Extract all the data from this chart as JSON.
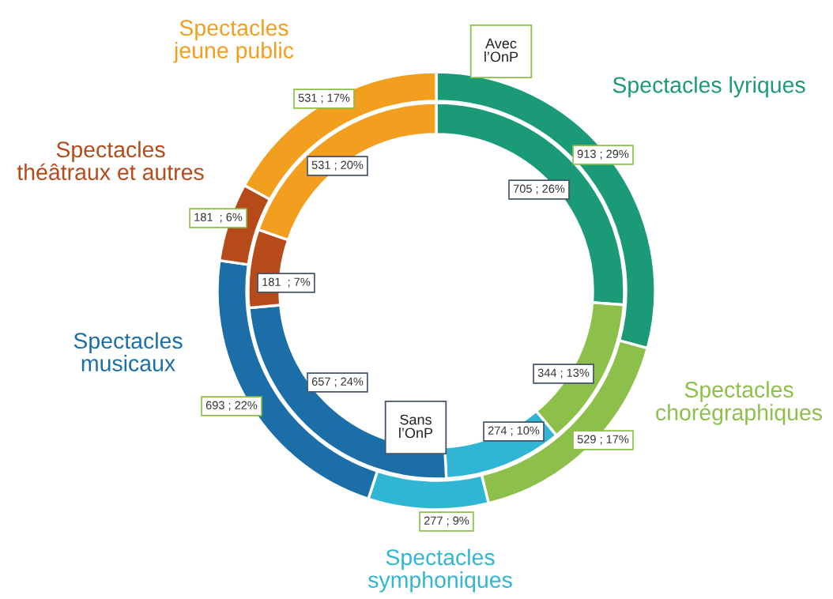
{
  "chart_data": {
    "type": "donut",
    "categories": [
      "Spectacles lyriques",
      "Spectacles chorégraphiques",
      "Spectacles symphoniques",
      "Spectacles musicaux",
      "Spectacles théâtraux et autres",
      "Spectacles jeune public"
    ],
    "colors": [
      "#1b9a78",
      "#8cc04a",
      "#31b5d5",
      "#1b6ea8",
      "#b64a19",
      "#f29f1f"
    ],
    "series": [
      {
        "name": "Avec l’OnP",
        "color": "#8cc04a",
        "values": [
          913,
          529,
          277,
          693,
          181,
          531
        ],
        "value_labels": [
          "913 ; 29%",
          "529 ; 17%",
          "277 ; 9%",
          "693 ; 22%",
          "181  ; 6%",
          "531 ; 17%"
        ]
      },
      {
        "name": "Sans l’OnP",
        "color": "#44546a",
        "values": [
          705,
          344,
          274,
          657,
          181,
          531
        ],
        "value_labels": [
          "705 ; 26%",
          "344 ; 13%",
          "274 ; 10%",
          "657 ; 24%",
          "181  ; 7%",
          "531 ; 20%"
        ]
      }
    ],
    "legend": false
  }
}
